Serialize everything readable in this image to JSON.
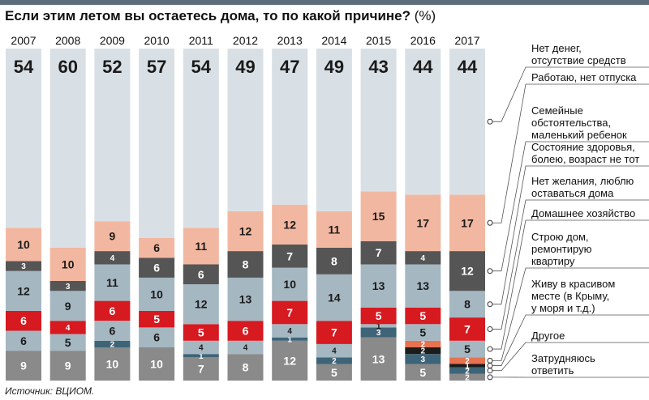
{
  "title": "Если этим летом вы остаетесь дома, то по какой причине?",
  "title_unit": "(%)",
  "source": "Источник: ВЦИОМ.",
  "chart_data": {
    "type": "bar",
    "stacked": true,
    "title": "Если этим летом вы остаетесь дома, то по какой причине? (%)",
    "categories": [
      "2007",
      "2008",
      "2009",
      "2010",
      "2011",
      "2012",
      "2013",
      "2014",
      "2015",
      "2016",
      "2017"
    ],
    "series": [
      {
        "name": "Затрудняюсь ответить",
        "color": "#8a8a8a",
        "values": [
          9,
          9,
          10,
          10,
          7,
          8,
          12,
          5,
          13,
          5,
          2
        ]
      },
      {
        "name": "Другое",
        "color": "#3e6478",
        "values": [
          0,
          0,
          2,
          0,
          1,
          0,
          1,
          2,
          3,
          3,
          2
        ]
      },
      {
        "name": "Живу в красивом месте (в Крыму, у моря и т.д.)",
        "color": "#1c1c1c",
        "values": [
          0,
          0,
          0,
          0,
          0,
          0,
          0,
          0,
          0,
          2,
          1
        ]
      },
      {
        "name": "Строю дом, ремонтирую квартиру",
        "color": "#e8714f",
        "values": [
          0,
          0,
          0,
          0,
          0,
          0,
          0,
          0,
          0,
          2,
          2
        ]
      },
      {
        "name": "Домашнее хозяйство",
        "color": "#a5b7c1",
        "values": [
          6,
          5,
          6,
          6,
          4,
          4,
          4,
          4,
          1,
          5,
          5
        ]
      },
      {
        "name": "Нет желания, люблю оставаться дома",
        "color": "#d71920",
        "values": [
          6,
          4,
          6,
          5,
          5,
          6,
          7,
          7,
          5,
          5,
          7
        ]
      },
      {
        "name": "Состояние здоровья, болею, возраст не тот",
        "color": "#a5b7c1",
        "values": [
          12,
          9,
          11,
          10,
          12,
          13,
          10,
          14,
          13,
          13,
          8
        ]
      },
      {
        "name": "Семейные обстоятельства, маленький ребенок",
        "color": "#555555",
        "values": [
          3,
          3,
          4,
          6,
          6,
          8,
          7,
          8,
          7,
          4,
          12
        ]
      },
      {
        "name": "Работаю, нет отпуска",
        "color": "#f2b7a0",
        "values": [
          10,
          10,
          9,
          6,
          11,
          12,
          12,
          11,
          15,
          17,
          17
        ]
      },
      {
        "name": "Нет денег, отсутствие средств",
        "color": "#d9e0e5",
        "values": [
          54,
          60,
          52,
          57,
          54,
          49,
          47,
          49,
          43,
          44,
          44
        ]
      }
    ],
    "legend": [
      {
        "series": 9,
        "lines": [
          "Нет денег,",
          "отсутствие средств"
        ]
      },
      {
        "series": 8,
        "lines": [
          "Работаю, нет отпуска"
        ]
      },
      {
        "series": 7,
        "lines": [
          "Семейные",
          "обстоятельства,",
          "маленький ребенок"
        ]
      },
      {
        "series": 6,
        "lines": [
          "Состояние здоровья,",
          "болею, возраст не тот"
        ]
      },
      {
        "series": 5,
        "lines": [
          "Нет желания, люблю",
          "оставаться дома"
        ]
      },
      {
        "series": 4,
        "lines": [
          "Домашнее хозяйство"
        ]
      },
      {
        "series": 3,
        "lines": [
          "Строю дом,",
          "ремонтирую",
          "квартиру"
        ]
      },
      {
        "series": 2,
        "lines": [
          "Живу в красивом",
          "месте (в Крыму,",
          "у моря и т.д.)"
        ]
      },
      {
        "series": 1,
        "lines": [
          "Другое"
        ]
      },
      {
        "series": 0,
        "lines": [
          "Затрудняюсь",
          "ответить"
        ]
      }
    ],
    "legend_placement": "right"
  }
}
